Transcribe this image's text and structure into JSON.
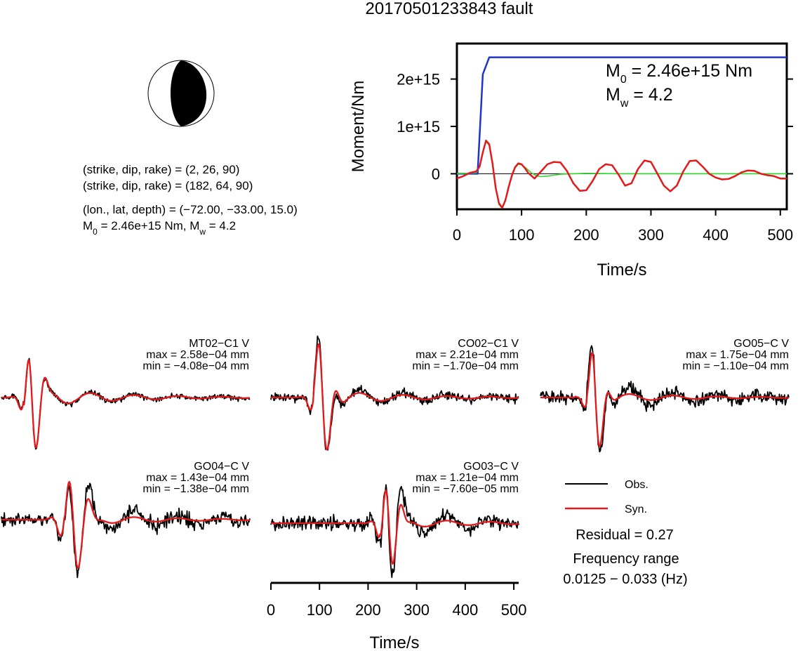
{
  "title": "20170501233843 fault",
  "info": {
    "solution1": "(strike, dip, rake) = (2, 26, 90)",
    "solution2": "(strike, dip, rake) = (182, 64, 90)",
    "location": "(lon., lat, depth) = (−72.00, −33.00, 15.0)",
    "m0_prefix": "M",
    "m0_sub": "0",
    "m0_rest": " = 2.46e+15 Nm, M",
    "mw_sub": "w",
    "mw_rest": " = 4.2"
  },
  "moment_annot": {
    "m0_symbol": "M",
    "m0_sub": "0",
    "m0_text": " = 2.46e+15 Nm",
    "mw_symbol": "M",
    "mw_sub": "w",
    "mw_text": " = 4.2"
  },
  "legend": {
    "obs": "Obs.",
    "syn": "Syn."
  },
  "results": {
    "residual": "Residual = 0.27",
    "freq_label": "Frequency range",
    "freq_value": "0.0125 − 0.033 (Hz)"
  },
  "colors": {
    "obs": "#000000",
    "syn": "#e31a1c",
    "cumulative": "#1f35c9",
    "green": "#2fd62f",
    "red": "#e31a1c"
  },
  "chart_data": [
    {
      "type": "line",
      "xlabel": "Time/s",
      "ylabel": "Moment/Nm",
      "xlim": [
        0,
        510
      ],
      "ylim": [
        -750000000000000.0,
        2750000000000000.0
      ],
      "xticks": [
        0,
        100,
        200,
        300,
        400,
        500
      ],
      "xtick_labels": [
        "0",
        "100",
        "200",
        "300",
        "400",
        "500"
      ],
      "yticks": [
        0,
        1000000000000000.0,
        2000000000000000.0
      ],
      "ytick_labels": [
        "0",
        "1e+15",
        "2e+15"
      ],
      "zero_line": true,
      "series": [
        {
          "color": "#1f35c9",
          "x": [
            0,
            32,
            40,
            50,
            510
          ],
          "y": [
            0,
            0,
            2100000000000000.0,
            2460000000000000.0,
            2460000000000000.0
          ]
        },
        {
          "color": "#2fd62f",
          "x": [
            0,
            30,
            35,
            40,
            45,
            50,
            55,
            60,
            65,
            70,
            75,
            80,
            85,
            90,
            95,
            100,
            105,
            110,
            115,
            120,
            125,
            130,
            140,
            150,
            160,
            180,
            200,
            250,
            300,
            350,
            400,
            450,
            510
          ],
          "y": [
            0,
            20000000000000.0,
            150000000000000.0,
            450000000000000.0,
            680000000000000.0,
            600000000000000.0,
            200000000000000.0,
            -300000000000000.0,
            -650000000000000.0,
            -720000000000000.0,
            -550000000000000.0,
            -300000000000000.0,
            -50000000000000.0,
            120000000000000.0,
            200000000000000.0,
            190000000000000.0,
            140000000000000.0,
            80000000000000.0,
            20000000000000.0,
            -20000000000000.0,
            -50000000000000.0,
            -60000000000000.0,
            -50000000000000.0,
            -30000000000000.0,
            -10000000000000.0,
            0.0,
            10000000000000.0,
            0.0,
            0.0,
            0.0,
            0.0,
            0.0,
            0.0
          ]
        },
        {
          "color": "#e31a1c",
          "x": [
            0,
            10,
            20,
            30,
            35,
            40,
            45,
            50,
            55,
            60,
            65,
            70,
            75,
            80,
            85,
            90,
            95,
            100,
            105,
            110,
            120,
            130,
            140,
            150,
            160,
            170,
            180,
            190,
            200,
            210,
            220,
            230,
            240,
            250,
            260,
            270,
            280,
            290,
            300,
            310,
            320,
            330,
            340,
            350,
            360,
            370,
            380,
            390,
            400,
            410,
            420,
            430,
            440,
            450,
            460,
            470,
            480,
            490,
            500,
            510
          ],
          "y": [
            -100000000000000.0,
            -50000000000000.0,
            20000000000000.0,
            50000000000000.0,
            150000000000000.0,
            450000000000000.0,
            700000000000000.0,
            620000000000000.0,
            220000000000000.0,
            -300000000000000.0,
            -620000000000000.0,
            -720000000000000.0,
            -560000000000000.0,
            -280000000000000.0,
            -40000000000000.0,
            140000000000000.0,
            220000000000000.0,
            200000000000000.0,
            120000000000000.0,
            20000000000000.0,
            -100000000000000.0,
            50000000000000.0,
            200000000000000.0,
            250000000000000.0,
            240000000000000.0,
            60000000000000.0,
            -200000000000000.0,
            -360000000000000.0,
            -350000000000000.0,
            -150000000000000.0,
            100000000000000.0,
            200000000000000.0,
            180000000000000.0,
            -20000000000000.0,
            -250000000000000.0,
            -200000000000000.0,
            100000000000000.0,
            280000000000000.0,
            250000000000000.0,
            0.0,
            -250000000000000.0,
            -370000000000000.0,
            -250000000000000.0,
            50000000000000.0,
            270000000000000.0,
            280000000000000.0,
            150000000000000.0,
            0.0,
            -80000000000000.0,
            -120000000000000.0,
            -110000000000000.0,
            -50000000000000.0,
            30000000000000.0,
            70000000000000.0,
            60000000000000.0,
            0.0,
            -30000000000000.0,
            -50000000000000.0,
            -100000000000000.0,
            -100000000000000.0
          ]
        }
      ]
    },
    {
      "type": "line",
      "xlabel": "Time/s",
      "xlim": [
        0,
        510
      ],
      "xticks": [
        0,
        100,
        200,
        300,
        400,
        500
      ],
      "xtick_labels": [
        "0",
        "100",
        "200",
        "300",
        "400",
        "500"
      ],
      "legend": [
        "Obs.",
        "Syn."
      ],
      "stations": [
        {
          "name": "MT02−C1 V",
          "max": "max = 2.58e−04 mm",
          "min": "min = −4.08e−04 mm",
          "obs": {
            "peakTime": 65,
            "amp": 1.0,
            "freq": 0.027,
            "width": 14,
            "noise": 0.06,
            "seed": 11,
            "coda": 0.18
          },
          "syn": {
            "peakTime": 65,
            "amp": 0.95,
            "freq": 0.027,
            "width": 15,
            "coda": 0.16
          }
        },
        {
          "name": "CO02−C1 V",
          "max": "max = 2.21e−04 mm",
          "min": "min = −1.70e−04 mm",
          "obs": {
            "peakTime": 108,
            "amp": 1.0,
            "freq": 0.025,
            "width": 16,
            "noise": 0.1,
            "seed": 23,
            "coda": 0.2
          },
          "syn": {
            "peakTime": 108,
            "amp": 0.95,
            "freq": 0.025,
            "width": 16,
            "coda": 0.12
          }
        },
        {
          "name": "GO05−C V",
          "max": "max = 1.75e−04 mm",
          "min": "min = −1.10e−04 mm",
          "obs": {
            "peakTime": 115,
            "amp": 1.0,
            "freq": 0.027,
            "width": 16,
            "noise": 0.16,
            "seed": 37,
            "coda": 0.28
          },
          "syn": {
            "peakTime": 115,
            "amp": 1.0,
            "freq": 0.027,
            "width": 14,
            "coda": 0.1
          }
        },
        {
          "name": "GO04−C V",
          "max": "max = 1.43e−04 mm",
          "min": "min = −1.38e−04 mm",
          "obs": {
            "peakTime": 150,
            "amp": 1.0,
            "freq": 0.024,
            "width": 22,
            "noise": 0.17,
            "seed": 41,
            "coda": 0.3
          },
          "syn": {
            "peakTime": 150,
            "amp": 0.9,
            "freq": 0.024,
            "width": 20,
            "coda": 0.1
          }
        },
        {
          "name": "GO03−C V",
          "max": "max = 1.21e−04 mm",
          "min": "min = −7.60e−05 mm",
          "obs": {
            "peakTime": 245,
            "amp": 1.0,
            "freq": 0.03,
            "width": 18,
            "noise": 0.17,
            "seed": 53,
            "coda": 0.3
          },
          "syn": {
            "peakTime": 245,
            "amp": 0.8,
            "freq": 0.03,
            "width": 16,
            "coda": 0.1
          }
        }
      ]
    }
  ]
}
